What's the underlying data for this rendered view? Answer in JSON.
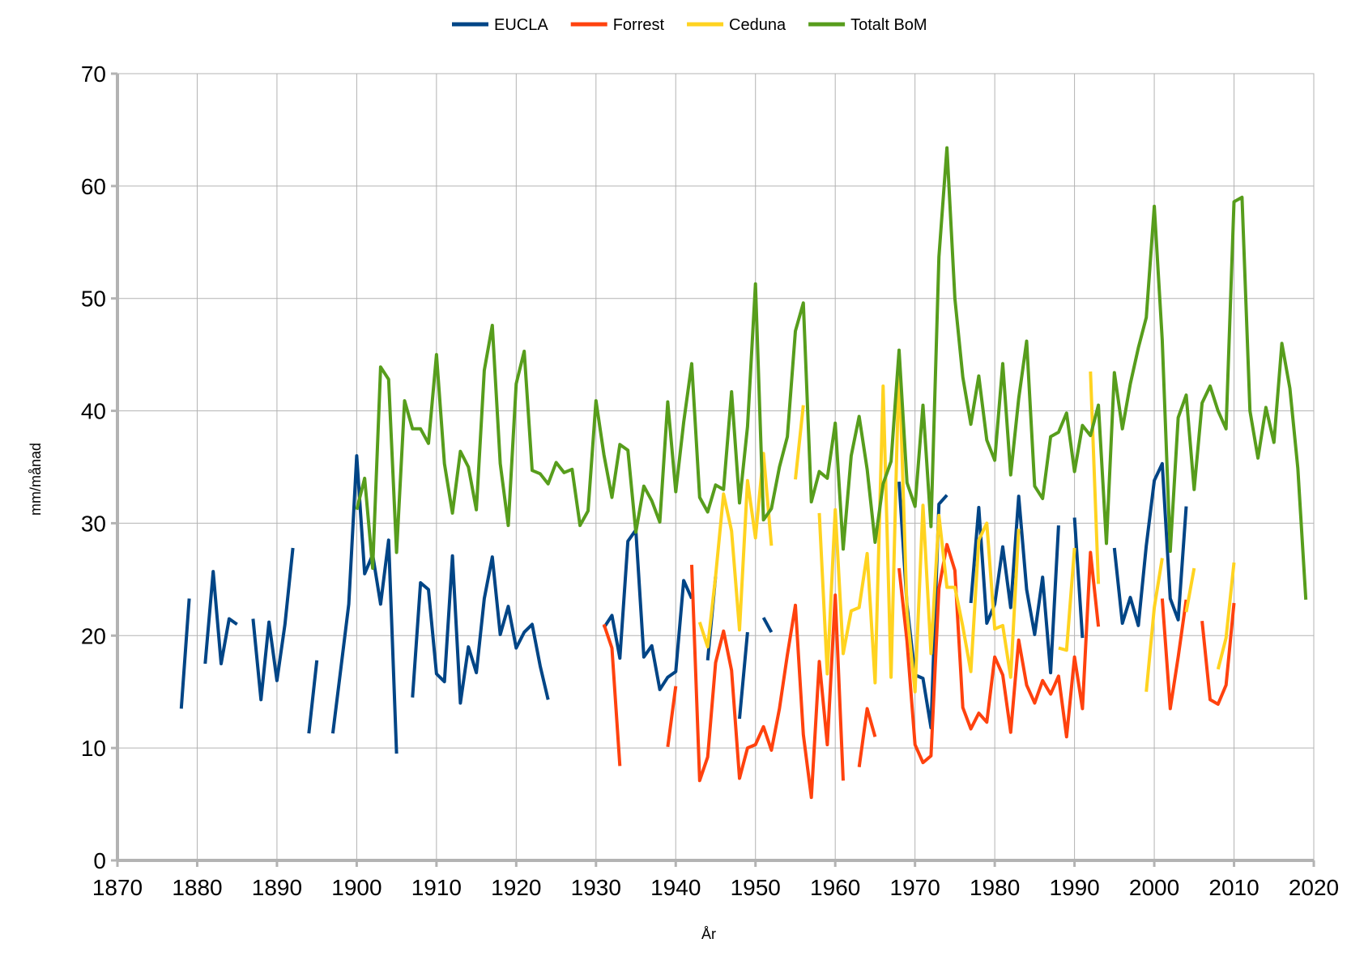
{
  "chart_data": {
    "type": "line",
    "title": "",
    "xlabel": "År",
    "ylabel": "mm/månad",
    "xlim": [
      1870,
      2020
    ],
    "ylim": [
      0,
      70
    ],
    "xticks": [
      1870,
      1880,
      1890,
      1900,
      1910,
      1920,
      1930,
      1940,
      1950,
      1960,
      1970,
      1980,
      1990,
      2000,
      2010,
      2020
    ],
    "yticks": [
      0,
      10,
      20,
      30,
      40,
      50,
      60,
      70
    ],
    "grid": true,
    "legend_position": "top",
    "series": [
      {
        "name": "EUCLA",
        "color": "#004586",
        "x": [
          1878,
          1879,
          1880,
          1881,
          1882,
          1883,
          1884,
          1885,
          1886,
          1887,
          1888,
          1889,
          1890,
          1891,
          1892,
          1893,
          1894,
          1895,
          1896,
          1897,
          1898,
          1899,
          1900,
          1901,
          1902,
          1903,
          1904,
          1905,
          1906,
          1907,
          1908,
          1909,
          1910,
          1911,
          1912,
          1913,
          1914,
          1915,
          1916,
          1917,
          1918,
          1919,
          1920,
          1921,
          1922,
          1923,
          1924,
          1925,
          1926,
          1927,
          1928,
          1929,
          1930,
          1931,
          1932,
          1933,
          1934,
          1935,
          1936,
          1937,
          1938,
          1939,
          1940,
          1941,
          1942,
          1943,
          1944,
          1945,
          1946,
          1947,
          1948,
          1949,
          1950,
          1951,
          1952,
          1953,
          1954,
          1955,
          1956,
          1957,
          1958,
          1959,
          1960,
          1961,
          1962,
          1963,
          1964,
          1965,
          1966,
          1967,
          1968,
          1969,
          1970,
          1971,
          1972,
          1973,
          1974,
          1975,
          1976,
          1977,
          1978,
          1979,
          1980,
          1981,
          1982,
          1983,
          1984,
          1985,
          1986,
          1987,
          1988,
          1989,
          1990,
          1991,
          1992,
          1993,
          1994,
          1995,
          1996,
          1997,
          1998,
          1999,
          2000,
          2001,
          2002,
          2003,
          2004
        ],
        "y": [
          13.5,
          23.3,
          null,
          17.5,
          25.7,
          17.5,
          21.5,
          21.0,
          null,
          21.5,
          14.3,
          21.2,
          16.0,
          21.0,
          27.8,
          null,
          11.3,
          17.8,
          null,
          11.3,
          17.0,
          22.8,
          36.0,
          25.5,
          27.2,
          22.8,
          28.5,
          9.5,
          null,
          14.5,
          24.7,
          24.1,
          16.6,
          15.9,
          27.1,
          14.0,
          19.0,
          16.7,
          23.3,
          27.0,
          20.1,
          22.6,
          18.9,
          20.3,
          21.0,
          17.3,
          14.3,
          null,
          null,
          null,
          null,
          null,
          null,
          20.7,
          21.8,
          18.0,
          28.4,
          29.4,
          18.1,
          19.1,
          15.2,
          16.3,
          16.8,
          24.9,
          23.3,
          null,
          17.8,
          25.3,
          null,
          null,
          12.6,
          20.3,
          null,
          21.6,
          20.3,
          null,
          null,
          null,
          null,
          null,
          null,
          null,
          null,
          null,
          null,
          null,
          null,
          null,
          null,
          null,
          33.7,
          22.7,
          16.5,
          16.2,
          11.8,
          31.7,
          32.5,
          null,
          null,
          22.9,
          31.4,
          21.1,
          22.8,
          27.9,
          22.5,
          32.4,
          24.1,
          20.1,
          25.2,
          16.7,
          29.8,
          null,
          30.5,
          19.8,
          null,
          null,
          null,
          27.8,
          21.1,
          23.4,
          20.9,
          28.0,
          33.8,
          35.3,
          23.3,
          21.4,
          31.5
        ]
      },
      {
        "name": "Forrest",
        "color": "#ff420e",
        "x": [
          1931,
          1932,
          1933,
          1934,
          1935,
          1936,
          1937,
          1938,
          1939,
          1940,
          1941,
          1942,
          1943,
          1944,
          1945,
          1946,
          1947,
          1948,
          1949,
          1950,
          1951,
          1952,
          1953,
          1954,
          1955,
          1956,
          1957,
          1958,
          1959,
          1960,
          1961,
          1962,
          1963,
          1964,
          1965,
          1966,
          1967,
          1968,
          1969,
          1970,
          1971,
          1972,
          1973,
          1974,
          1975,
          1976,
          1977,
          1978,
          1979,
          1980,
          1981,
          1982,
          1983,
          1984,
          1985,
          1986,
          1987,
          1988,
          1989,
          1990,
          1991,
          1992,
          1993,
          1994,
          1995,
          1996,
          1997,
          1998,
          1999,
          2000,
          2001,
          2002,
          2003,
          2004,
          2005,
          2006,
          2007,
          2008,
          2009,
          2010
        ],
        "y": [
          21.0,
          18.9,
          8.4,
          null,
          null,
          null,
          null,
          null,
          10.1,
          15.5,
          null,
          26.3,
          7.1,
          9.2,
          17.6,
          20.4,
          16.9,
          7.3,
          10.0,
          10.3,
          11.9,
          9.8,
          13.5,
          18.3,
          22.7,
          11.2,
          5.6,
          17.7,
          10.3,
          23.6,
          7.1,
          null,
          8.3,
          13.5,
          11.0,
          null,
          null,
          26.0,
          19.5,
          10.3,
          8.7,
          9.3,
          24.2,
          28.1,
          25.8,
          13.6,
          11.7,
          13.1,
          12.3,
          18.1,
          16.5,
          11.4,
          19.6,
          15.6,
          14.0,
          16.0,
          14.8,
          16.4,
          11.0,
          18.1,
          13.5,
          27.4,
          20.8,
          null,
          null,
          null,
          null,
          null,
          null,
          null,
          23.3,
          13.5,
          18.1,
          23.2,
          null,
          21.3,
          14.3,
          13.9,
          15.6,
          22.9
        ]
      },
      {
        "name": "Ceduna",
        "color": "#ffd320",
        "x": [
          1943,
          1944,
          1945,
          1946,
          1947,
          1948,
          1949,
          1950,
          1951,
          1952,
          1953,
          1954,
          1955,
          1956,
          1957,
          1958,
          1959,
          1960,
          1961,
          1962,
          1963,
          1964,
          1965,
          1966,
          1967,
          1968,
          1969,
          1970,
          1971,
          1972,
          1973,
          1974,
          1975,
          1976,
          1977,
          1978,
          1979,
          1980,
          1981,
          1982,
          1983,
          1984,
          1985,
          1986,
          1987,
          1988,
          1989,
          1990,
          1991,
          1992,
          1993,
          1994,
          1995,
          1996,
          1997,
          1998,
          1999,
          2000,
          2001,
          2002,
          2003,
          2004,
          2005,
          2006,
          2007,
          2008,
          2009,
          2010
        ],
        "y": [
          21.2,
          19.0,
          25.3,
          32.6,
          29.3,
          20.5,
          33.8,
          28.7,
          36.2,
          28.0,
          null,
          null,
          33.9,
          40.5,
          null,
          30.9,
          16.6,
          31.2,
          18.4,
          22.2,
          22.5,
          27.3,
          15.8,
          42.2,
          16.3,
          44.5,
          22.1,
          15.0,
          31.6,
          18.4,
          30.7,
          24.3,
          24.3,
          20.8,
          16.8,
          28.5,
          30.0,
          20.6,
          20.9,
          16.3,
          29.5,
          null,
          null,
          23.0,
          null,
          18.9,
          18.7,
          27.8,
          null,
          43.5,
          24.6,
          null,
          null,
          null,
          null,
          null,
          15.0,
          22.5,
          26.9,
          null,
          null,
          22.1,
          26.0,
          null,
          null,
          17.0,
          19.8,
          26.5
        ]
      },
      {
        "name": "Totalt BoM",
        "color": "#579d1c",
        "x": [
          1900,
          1901,
          1902,
          1903,
          1904,
          1905,
          1906,
          1907,
          1908,
          1909,
          1910,
          1911,
          1912,
          1913,
          1914,
          1915,
          1916,
          1917,
          1918,
          1919,
          1920,
          1921,
          1922,
          1923,
          1924,
          1925,
          1926,
          1927,
          1928,
          1929,
          1930,
          1931,
          1932,
          1933,
          1934,
          1935,
          1936,
          1937,
          1938,
          1939,
          1940,
          1941,
          1942,
          1943,
          1944,
          1945,
          1946,
          1947,
          1948,
          1949,
          1950,
          1951,
          1952,
          1953,
          1954,
          1955,
          1956,
          1957,
          1958,
          1959,
          1960,
          1961,
          1962,
          1963,
          1964,
          1965,
          1966,
          1967,
          1968,
          1969,
          1970,
          1971,
          1972,
          1973,
          1974,
          1975,
          1976,
          1977,
          1978,
          1979,
          1980,
          1981,
          1982,
          1983,
          1984,
          1985,
          1986,
          1987,
          1988,
          1989,
          1990,
          1991,
          1992,
          1993,
          1994,
          1995,
          1996,
          1997,
          1998,
          1999,
          2000,
          2001,
          2002,
          2003,
          2004,
          2005,
          2006,
          2007,
          2008,
          2009,
          2010,
          2011,
          2012,
          2013,
          2014,
          2015,
          2016,
          2017,
          2018,
          2019
        ],
        "y": [
          31.2,
          34.0,
          26.0,
          43.9,
          42.8,
          27.4,
          40.9,
          38.4,
          38.4,
          37.1,
          45.0,
          35.3,
          30.9,
          36.4,
          35.0,
          31.2,
          43.6,
          47.6,
          35.3,
          29.8,
          42.4,
          45.3,
          34.7,
          34.4,
          33.5,
          35.4,
          34.5,
          34.8,
          29.8,
          31.1,
          40.9,
          36.1,
          32.3,
          37.0,
          36.5,
          29.2,
          33.3,
          32.0,
          30.1,
          40.8,
          32.8,
          39.0,
          44.2,
          32.3,
          31.0,
          33.4,
          33.0,
          41.7,
          31.8,
          38.6,
          51.3,
          30.3,
          31.3,
          35.0,
          37.7,
          47.1,
          49.6,
          31.9,
          34.6,
          34.0,
          38.9,
          27.7,
          36.0,
          39.5,
          34.8,
          28.3,
          33.5,
          35.5,
          45.4,
          33.6,
          31.5,
          40.5,
          29.7,
          53.7,
          63.4,
          50.0,
          43.0,
          38.8,
          43.1,
          37.4,
          35.6,
          44.2,
          34.3,
          41.1,
          46.2,
          33.3,
          32.2,
          37.7,
          38.1,
          39.8,
          34.6,
          38.7,
          37.8,
          40.5,
          28.2,
          43.4,
          38.4,
          42.4,
          45.6,
          48.3,
          58.2,
          46.3,
          27.5,
          39.4,
          41.4,
          33.0,
          40.7,
          42.2,
          40.0,
          38.4,
          58.6,
          59.0,
          40.0,
          35.8,
          40.3,
          37.2,
          46.0,
          42.0,
          34.9,
          23.2
        ]
      }
    ]
  }
}
